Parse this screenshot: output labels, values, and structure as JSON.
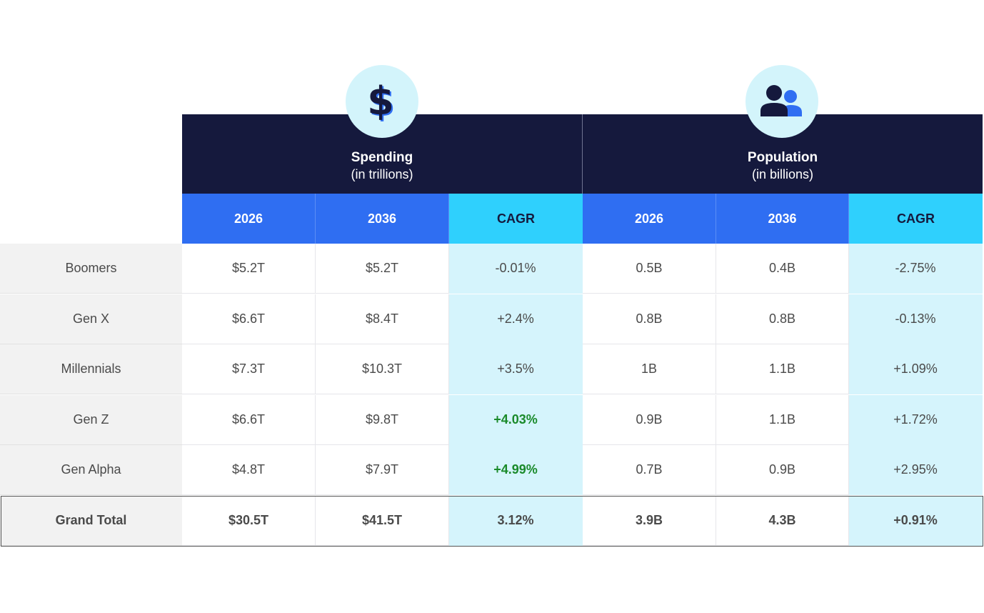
{
  "groups": {
    "spending": {
      "title": "Spending",
      "subtitle": "(in trillions)",
      "icon": "dollar-icon"
    },
    "population": {
      "title": "Population",
      "subtitle": "(in billions)",
      "icon": "people-icon"
    }
  },
  "columns": [
    "2026",
    "2036",
    "CAGR",
    "2026",
    "2036",
    "CAGR"
  ],
  "colors": {
    "header_dark": "#15193d",
    "header_blue": "#2f6ef2",
    "header_cyan": "#2fd0fd",
    "cagr_cell": "#d5f4fc",
    "highlight_green": "#1a8a2a"
  },
  "chart_data": {
    "type": "table",
    "columns": [
      "",
      "Spending 2026",
      "Spending 2036",
      "Spending CAGR",
      "Population 2026",
      "Population 2036",
      "Population CAGR"
    ],
    "rows": [
      {
        "label": "Boomers",
        "cells": [
          "$5.2T",
          "$5.2T",
          "-0.01%",
          "0.5B",
          "0.4B",
          "-2.75%"
        ]
      },
      {
        "label": "Gen X",
        "cells": [
          "$6.6T",
          "$8.4T",
          "+2.4%",
          "0.8B",
          "0.8B",
          "-0.13%"
        ]
      },
      {
        "label": "Millennials",
        "cells": [
          "$7.3T",
          "$10.3T",
          "+3.5%",
          "1B",
          "1.1B",
          "+1.09%"
        ]
      },
      {
        "label": "Gen Z",
        "cells": [
          "$6.6T",
          "$9.8T",
          "+4.03%",
          "0.9B",
          "1.1B",
          "+1.72%"
        ]
      },
      {
        "label": "Gen Alpha",
        "cells": [
          "$4.8T",
          "$7.9T",
          "+4.99%",
          "0.7B",
          "0.9B",
          "+2.95%"
        ]
      },
      {
        "label": "Grand Total",
        "cells": [
          "$30.5T",
          "$41.5T",
          "3.12%",
          "3.9B",
          "4.3B",
          "+0.91%"
        ]
      }
    ],
    "highlighted_cells": [
      [
        "Gen Z",
        "Spending CAGR"
      ],
      [
        "Gen Alpha",
        "Spending CAGR"
      ]
    ]
  }
}
